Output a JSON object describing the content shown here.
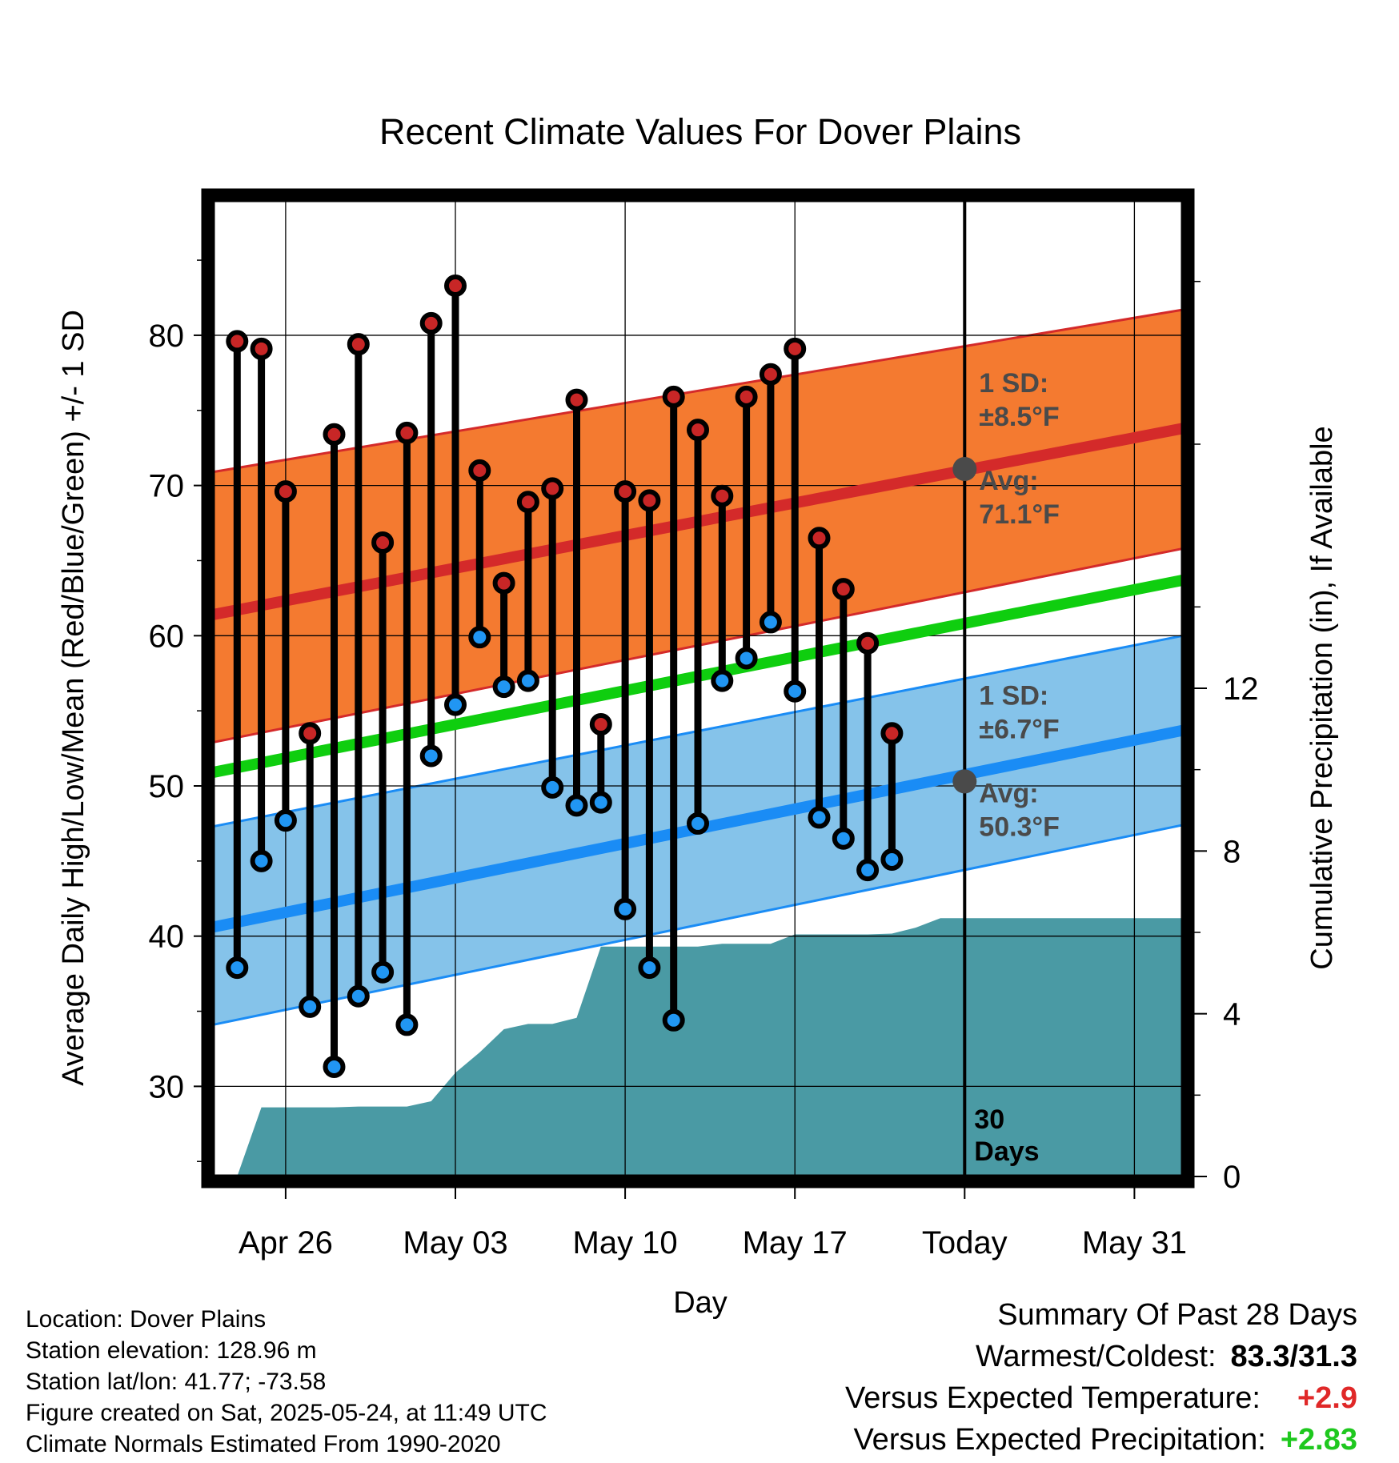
{
  "chart_data": {
    "type": "line",
    "title": "Recent Climate Values For Dover Plains",
    "xlabel": "Day",
    "ylabel": "Average Daily High/Low/Mean (Red/Blue/Green) +/- 1 SD",
    "y2label": "Cumulative Precipitation (in), If Available",
    "x_ticks": [
      {
        "date": "2025-04-26",
        "label": "Apr 26"
      },
      {
        "date": "2025-05-03",
        "label": "May 03"
      },
      {
        "date": "2025-05-10",
        "label": "May 10"
      },
      {
        "date": "2025-05-17",
        "label": "May 17"
      },
      {
        "date": "2025-05-24",
        "label": "Today"
      },
      {
        "date": "2025-05-31",
        "label": "May 31"
      }
    ],
    "xlim": [
      "2025-04-23",
      "2025-06-02"
    ],
    "ylim": [
      24,
      89
    ],
    "y_ticks": [
      30,
      40,
      50,
      60,
      70,
      80
    ],
    "y2lim": [
      0,
      24
    ],
    "y2_ticks": [
      0,
      4,
      8,
      12
    ],
    "grid": true,
    "today": "2025-05-24",
    "today_label": "30\nDays",
    "normals": {
      "high_avg": {
        "start": 61.4,
        "end": 73.8
      },
      "high_upper": {
        "start": 70.9,
        "end": 81.7
      },
      "high_lower": {
        "start": 52.9,
        "end": 65.8
      },
      "mean_avg": {
        "start": 50.9,
        "end": 63.7
      },
      "low_avg": {
        "start": 40.6,
        "end": 53.7
      },
      "low_upper": {
        "start": 47.3,
        "end": 60.0
      },
      "low_lower": {
        "start": 34.1,
        "end": 47.4
      }
    },
    "high_annotation": {
      "sd_label": "1 SD:",
      "sd_value": "±8.5°F",
      "avg_label": "Avg:",
      "avg_value": "71.1°F",
      "avg": 71.1
    },
    "low_annotation": {
      "sd_label": "1 SD:",
      "sd_value": "±6.7°F",
      "avg_label": "Avg:",
      "avg_value": "50.3°F",
      "avg": 50.3
    },
    "daily": [
      {
        "date": "2025-04-24",
        "high": 79.6,
        "low": 37.9
      },
      {
        "date": "2025-04-25",
        "high": 79.1,
        "low": 45.0
      },
      {
        "date": "2025-04-26",
        "high": 69.6,
        "low": 47.7
      },
      {
        "date": "2025-04-27",
        "high": 53.5,
        "low": 35.3
      },
      {
        "date": "2025-04-28",
        "high": 73.4,
        "low": 31.3
      },
      {
        "date": "2025-04-29",
        "high": 79.4,
        "low": 36.0
      },
      {
        "date": "2025-04-30",
        "high": 66.2,
        "low": 37.6
      },
      {
        "date": "2025-05-01",
        "high": 73.5,
        "low": 34.1
      },
      {
        "date": "2025-05-02",
        "high": 80.8,
        "low": 52.0
      },
      {
        "date": "2025-05-03",
        "high": 83.3,
        "low": 55.4
      },
      {
        "date": "2025-05-04",
        "high": 71.0,
        "low": 59.9
      },
      {
        "date": "2025-05-05",
        "high": 63.5,
        "low": 56.6
      },
      {
        "date": "2025-05-06",
        "high": 68.9,
        "low": 57.0
      },
      {
        "date": "2025-05-07",
        "high": 69.8,
        "low": 49.9
      },
      {
        "date": "2025-05-08",
        "high": 75.7,
        "low": 48.7
      },
      {
        "date": "2025-05-09",
        "high": 54.1,
        "low": 48.9
      },
      {
        "date": "2025-05-10",
        "high": 69.6,
        "low": 41.8
      },
      {
        "date": "2025-05-11",
        "high": 69.0,
        "low": 37.9
      },
      {
        "date": "2025-05-12",
        "high": 75.9,
        "low": 34.4
      },
      {
        "date": "2025-05-13",
        "high": 73.7,
        "low": 47.5
      },
      {
        "date": "2025-05-14",
        "high": 69.3,
        "low": 57.0
      },
      {
        "date": "2025-05-15",
        "high": 75.9,
        "low": 58.5
      },
      {
        "date": "2025-05-16",
        "high": 77.4,
        "low": 60.9
      },
      {
        "date": "2025-05-17",
        "high": 79.1,
        "low": 56.3
      },
      {
        "date": "2025-05-18",
        "high": 66.5,
        "low": 47.9
      },
      {
        "date": "2025-05-19",
        "high": 63.1,
        "low": 46.5
      },
      {
        "date": "2025-05-20",
        "high": 59.5,
        "low": 44.4
      },
      {
        "date": "2025-05-21",
        "high": 53.5,
        "low": 45.1
      }
    ],
    "precip_cumulative": [
      {
        "date": "2025-04-24",
        "value": 0.0
      },
      {
        "date": "2025-04-25",
        "value": 1.7
      },
      {
        "date": "2025-04-26",
        "value": 1.7
      },
      {
        "date": "2025-04-27",
        "value": 1.7
      },
      {
        "date": "2025-04-28",
        "value": 1.7
      },
      {
        "date": "2025-04-29",
        "value": 1.72
      },
      {
        "date": "2025-04-30",
        "value": 1.72
      },
      {
        "date": "2025-05-01",
        "value": 1.72
      },
      {
        "date": "2025-05-02",
        "value": 1.85
      },
      {
        "date": "2025-05-03",
        "value": 2.55
      },
      {
        "date": "2025-05-04",
        "value": 3.05
      },
      {
        "date": "2025-05-05",
        "value": 3.62
      },
      {
        "date": "2025-05-06",
        "value": 3.75
      },
      {
        "date": "2025-05-07",
        "value": 3.75
      },
      {
        "date": "2025-05-08",
        "value": 3.9
      },
      {
        "date": "2025-05-09",
        "value": 5.65
      },
      {
        "date": "2025-05-10",
        "value": 5.65
      },
      {
        "date": "2025-05-11",
        "value": 5.65
      },
      {
        "date": "2025-05-12",
        "value": 5.65
      },
      {
        "date": "2025-05-13",
        "value": 5.65
      },
      {
        "date": "2025-05-14",
        "value": 5.72
      },
      {
        "date": "2025-05-15",
        "value": 5.72
      },
      {
        "date": "2025-05-16",
        "value": 5.72
      },
      {
        "date": "2025-05-17",
        "value": 5.95
      },
      {
        "date": "2025-05-18",
        "value": 5.95
      },
      {
        "date": "2025-05-19",
        "value": 5.95
      },
      {
        "date": "2025-05-20",
        "value": 5.95
      },
      {
        "date": "2025-05-21",
        "value": 5.97
      },
      {
        "date": "2025-05-22",
        "value": 6.12
      },
      {
        "date": "2025-05-23",
        "value": 6.35
      },
      {
        "date": "2025-06-02",
        "value": 6.35
      }
    ]
  },
  "colors": {
    "high_band": "#f47a30",
    "high_line": "#d42a2a",
    "low_band": "#85c3ea",
    "low_line": "#1a8cf5",
    "mean_line": "#0fce0f",
    "precip": "#4a9aa4",
    "high_dot": "#c82626",
    "low_dot": "#2196f3",
    "annotation": "#4a4a4a",
    "positive_temp": "#e02828",
    "positive_precip": "#1ec81e"
  },
  "metadata": {
    "location": "Location: Dover Plains",
    "elevation": "Station elevation: 128.96 m",
    "latlon": "Station lat/lon: 41.77; -73.58",
    "created": "Figure created on Sat, 2025-05-24, at 11:49 UTC",
    "normals": "Climate Normals Estimated From 1990-2020"
  },
  "summary": {
    "title": "Summary Of Past 28 Days",
    "warmest_label": "Warmest/Coldest:",
    "warmest_value": "83.3/31.3",
    "temp_label": "Versus Expected Temperature:",
    "temp_value": "+2.9",
    "precip_label": "Versus Expected Precipitation:",
    "precip_value": "+2.83"
  }
}
